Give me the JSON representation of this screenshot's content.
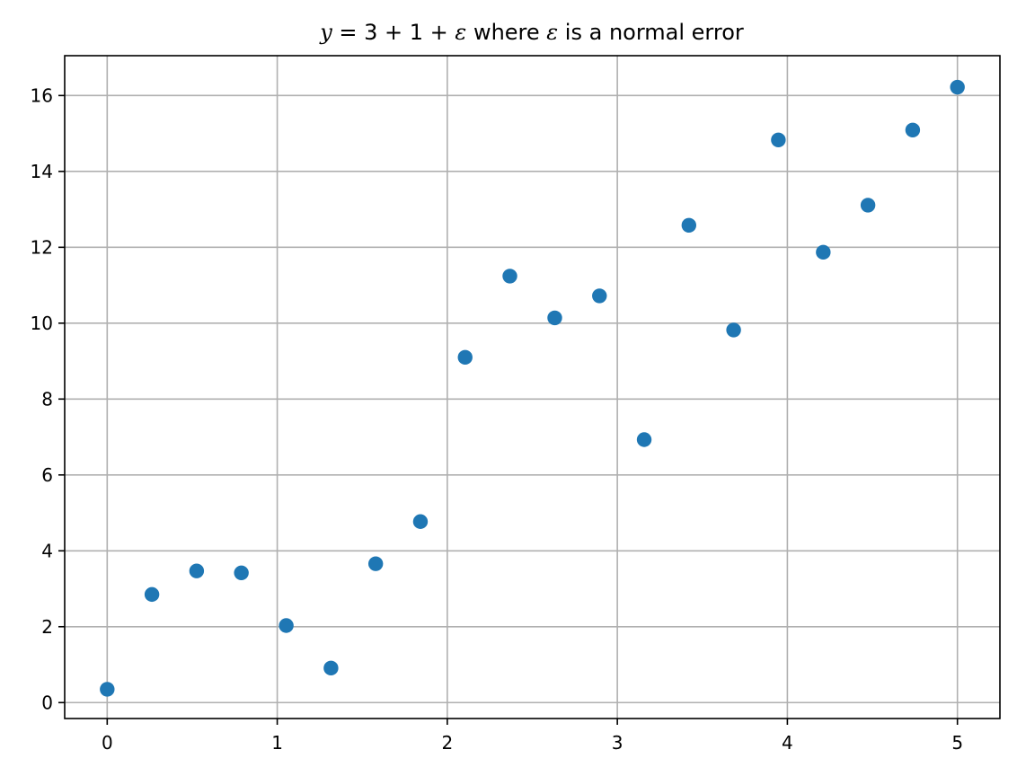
{
  "chart_data": {
    "type": "scatter",
    "title": {
      "math_1": "y",
      "math_2": " = 3 + 1 + ",
      "math_3": "ε",
      "text_1": " where ",
      "math_4": "ε",
      "text_2": " is a normal error"
    },
    "xlabel": "",
    "ylabel": "",
    "xlim": [
      -0.25,
      5.25
    ],
    "ylim": [
      -0.42,
      17.05
    ],
    "x_ticks": [
      0,
      1,
      2,
      3,
      4,
      5
    ],
    "y_ticks": [
      0,
      2,
      4,
      6,
      8,
      10,
      12,
      14,
      16
    ],
    "grid": true,
    "legend": "none",
    "colors": {
      "marker": "#1f77b4",
      "grid": "#b0b0b0",
      "axes": "#000000"
    },
    "series": [
      {
        "x": [
          0,
          0.263,
          0.526,
          0.789,
          1.053,
          1.316,
          1.579,
          1.842,
          2.105,
          2.368,
          2.632,
          2.895,
          3.158,
          3.421,
          3.684,
          3.947,
          4.211,
          4.474,
          4.737,
          5.0
        ],
        "y": [
          0.35,
          2.85,
          3.47,
          3.42,
          2.03,
          0.91,
          3.66,
          4.77,
          9.1,
          11.24,
          10.14,
          10.72,
          6.93,
          12.58,
          9.82,
          14.83,
          11.87,
          13.11,
          15.09,
          16.22
        ]
      }
    ]
  }
}
